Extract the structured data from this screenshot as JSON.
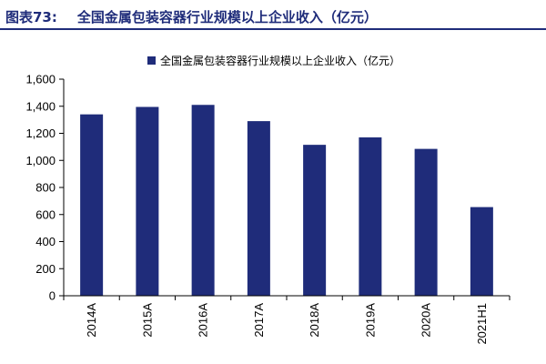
{
  "figure": {
    "label": "图表73:",
    "title": "全国金属包装容器行业规模以上企业收入（亿元）"
  },
  "colors": {
    "bar": "#1f2c7a",
    "header": "#1f2c7a",
    "axis": "#000000"
  },
  "chart_data": {
    "type": "bar",
    "title": "全国金属包装容器行业规模以上企业收入（亿元）",
    "xlabel": "",
    "ylabel": "",
    "categories": [
      "2014A",
      "2015A",
      "2016A",
      "2017A",
      "2018A",
      "2019A",
      "2020A",
      "2021H1"
    ],
    "series": [
      {
        "name": "全国金属包装容器行业规模以上企业收入（亿元）",
        "values": [
          1340,
          1395,
          1410,
          1290,
          1115,
          1170,
          1085,
          655
        ]
      }
    ],
    "ylim": [
      0,
      1600
    ],
    "yticks": [
      0,
      200,
      400,
      600,
      800,
      1000,
      1200,
      1400,
      1600
    ],
    "ytick_labels": [
      "0",
      "200",
      "400",
      "600",
      "800",
      "1,000",
      "1,200",
      "1,400",
      "1,600"
    ],
    "legend": "top-center",
    "grid": false
  }
}
